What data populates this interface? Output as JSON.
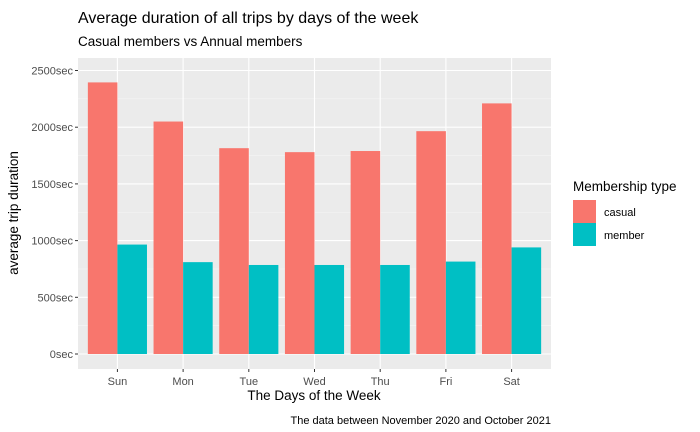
{
  "chart_data": {
    "type": "bar",
    "title": "Average duration of all trips by days of the week",
    "subtitle": "Casual members vs Annual members",
    "xlabel": "The Days of the Week",
    "ylabel": "average trip duration",
    "caption": "The data between November 2020 and October 2021",
    "categories": [
      "Sun",
      "Mon",
      "Tue",
      "Wed",
      "Thu",
      "Fri",
      "Sat"
    ],
    "series": [
      {
        "name": "casual",
        "color": "#F8766D",
        "values": [
          2395,
          2050,
          1815,
          1780,
          1790,
          1965,
          2210
        ]
      },
      {
        "name": "member",
        "color": "#00BFC4",
        "values": [
          965,
          810,
          785,
          785,
          785,
          815,
          940
        ]
      }
    ],
    "ylim": [
      0,
      2600
    ],
    "yticks": [
      0,
      500,
      1000,
      1500,
      2000,
      2500
    ],
    "ytick_labels": [
      "0sec",
      "500sec",
      "1000sec",
      "1500sec",
      "2000sec",
      "2500sec"
    ],
    "legend": {
      "title": "Membership type",
      "position": "right",
      "items": [
        "casual",
        "member"
      ]
    },
    "grid": true
  }
}
